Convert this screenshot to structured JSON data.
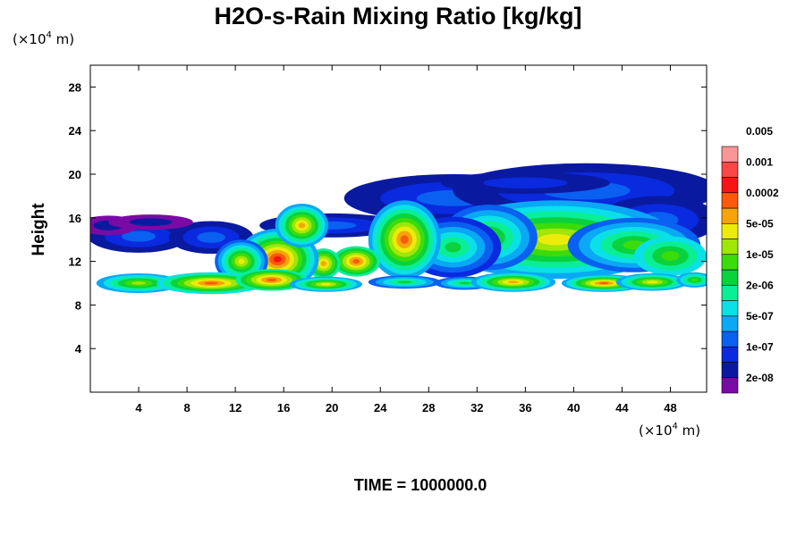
{
  "chart_data": {
    "type": "heatmap",
    "title": "H2O-s-Rain Mixing Ratio [kg/kg]",
    "ylabel": "Height",
    "y_unit": {
      "prefix": "(×10",
      "exponent": "4",
      "suffix": " m)"
    },
    "x_unit": {
      "prefix": "(×10",
      "exponent": "4",
      "suffix": " m)"
    },
    "xlim": [
      0,
      51
    ],
    "ylim": [
      0,
      30
    ],
    "xticks": [
      4,
      8,
      12,
      16,
      20,
      24,
      28,
      32,
      36,
      40,
      44,
      48
    ],
    "yticks": [
      4,
      8,
      12,
      16,
      20,
      24,
      28
    ],
    "colorbar": {
      "colors": [
        "#7a0aa5",
        "#0a1aa0",
        "#0a2ae0",
        "#0a60f0",
        "#0aa8f5",
        "#0ae0e6",
        "#0aee96",
        "#0ad23c",
        "#3cdc0a",
        "#a0e60a",
        "#ecec0a",
        "#f5a50a",
        "#fa5a0a",
        "#f51414",
        "#fa4646",
        "#fa9696"
      ],
      "labels": [
        "2e-08",
        "1e-07",
        "5e-07",
        "2e-06",
        "1e-05",
        "5e-05",
        "0.0002",
        "0.001",
        "0.005"
      ]
    },
    "footer": "TIME = 1000000.0"
  }
}
